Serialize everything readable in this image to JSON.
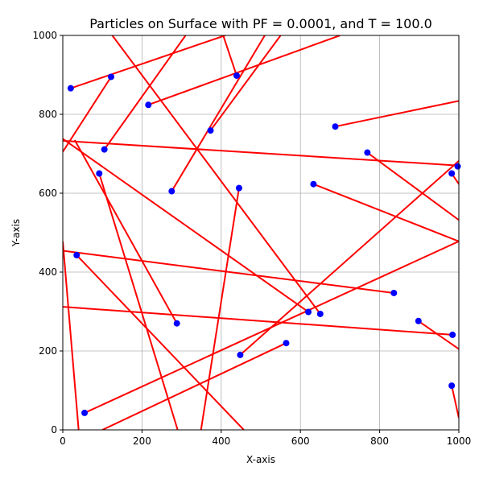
{
  "chart_data": {
    "type": "scatter",
    "title": "Particles on Surface with PF = 0.0001, and T = 100.0",
    "xlabel": "X-axis",
    "ylabel": "Y-axis",
    "xlim": [
      0,
      1000
    ],
    "ylim": [
      0,
      1000
    ],
    "xticks": [
      0,
      200,
      400,
      600,
      800,
      1000
    ],
    "yticks": [
      0,
      200,
      400,
      600,
      800,
      1000
    ],
    "grid": true,
    "colors": {
      "points": "#0000ff",
      "trajectories": "#ff0000"
    },
    "points": [
      {
        "x": 20,
        "y": 866
      },
      {
        "x": 122,
        "y": 895
      },
      {
        "x": 216,
        "y": 824
      },
      {
        "x": 439,
        "y": 898
      },
      {
        "x": 373,
        "y": 759
      },
      {
        "x": 105,
        "y": 711
      },
      {
        "x": 688,
        "y": 769
      },
      {
        "x": 769,
        "y": 703
      },
      {
        "x": 92,
        "y": 650
      },
      {
        "x": 275,
        "y": 605
      },
      {
        "x": 445,
        "y": 613
      },
      {
        "x": 633,
        "y": 623
      },
      {
        "x": 982,
        "y": 650
      },
      {
        "x": 997,
        "y": 668
      },
      {
        "x": 35,
        "y": 443
      },
      {
        "x": 836,
        "y": 347
      },
      {
        "x": 620,
        "y": 299
      },
      {
        "x": 650,
        "y": 294
      },
      {
        "x": 288,
        "y": 270
      },
      {
        "x": 898,
        "y": 276
      },
      {
        "x": 984,
        "y": 241
      },
      {
        "x": 448,
        "y": 190
      },
      {
        "x": 564,
        "y": 220
      },
      {
        "x": 55,
        "y": 43
      },
      {
        "x": 982,
        "y": 112
      }
    ],
    "trajectories": [
      {
        "x": [
          20,
          410
        ],
        "y": [
          866,
          1000
        ]
      },
      {
        "x": [
          122,
          0
        ],
        "y": [
          895,
          705
        ]
      },
      {
        "x": [
          216,
          700
        ],
        "y": [
          824,
          1000
        ]
      },
      {
        "x": [
          439,
          405
        ],
        "y": [
          898,
          1000
        ]
      },
      {
        "x": [
          373,
          550
        ],
        "y": [
          759,
          1000
        ]
      },
      {
        "x": [
          105,
          310
        ],
        "y": [
          711,
          1000
        ]
      },
      {
        "x": [
          688,
          1000
        ],
        "y": [
          769,
          834
        ]
      },
      {
        "x": [
          769,
          1000
        ],
        "y": [
          703,
          532
        ]
      },
      {
        "x": [
          92,
          290
        ],
        "y": [
          650,
          0
        ]
      },
      {
        "x": [
          275,
          510
        ],
        "y": [
          605,
          1000
        ]
      },
      {
        "x": [
          445,
          349
        ],
        "y": [
          613,
          0
        ]
      },
      {
        "x": [
          633,
          1000
        ],
        "y": [
          623,
          478
        ]
      },
      {
        "x": [
          982,
          1000
        ],
        "y": [
          650,
          623
        ]
      },
      {
        "x": [
          1000,
          0
        ],
        "y": [
          670,
          733
        ]
      },
      {
        "x": [
          35,
          457
        ],
        "y": [
          443,
          0
        ]
      },
      {
        "x": [
          836,
          0
        ],
        "y": [
          347,
          454
        ]
      },
      {
        "x": [
          620,
          0
        ],
        "y": [
          299,
          738
        ]
      },
      {
        "x": [
          650,
          125
        ],
        "y": [
          294,
          1000
        ]
      },
      {
        "x": [
          288,
          30
        ],
        "y": [
          270,
          735
        ]
      },
      {
        "x": [
          898,
          1000
        ],
        "y": [
          276,
          205
        ]
      },
      {
        "x": [
          984,
          0
        ],
        "y": [
          241,
          312
        ]
      },
      {
        "x": [
          448,
          1000
        ],
        "y": [
          190,
          682
        ]
      },
      {
        "x": [
          564,
          100
        ],
        "y": [
          220,
          0
        ]
      },
      {
        "x": [
          55,
          1000
        ],
        "y": [
          43,
          478
        ]
      },
      {
        "x": [
          982,
          1000
        ],
        "y": [
          112,
          30
        ]
      },
      {
        "x": [
          0,
          40
        ],
        "y": [
          478,
          0
        ]
      }
    ]
  }
}
